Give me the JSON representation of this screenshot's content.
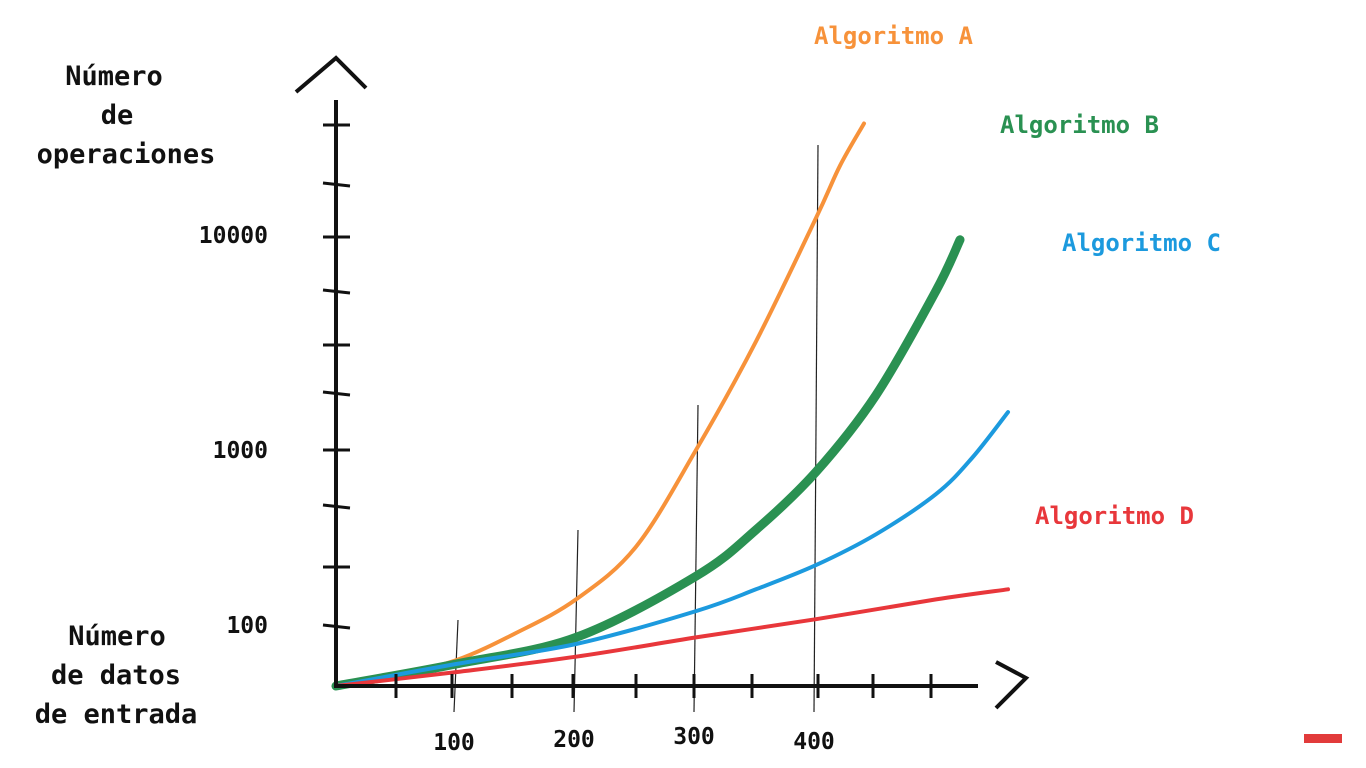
{
  "chart_data": {
    "type": "line",
    "ylabel_lines": [
      "Número",
      "de",
      "operaciones"
    ],
    "xlabel_lines": [
      "Número",
      "de datos",
      "de entrada"
    ],
    "x_ticks": [
      {
        "value": 100,
        "label": "100"
      },
      {
        "value": 200,
        "label": "200"
      },
      {
        "value": 300,
        "label": "300"
      },
      {
        "value": 400,
        "label": "400"
      }
    ],
    "y_ticks": [
      {
        "value": 100,
        "label": "100"
      },
      {
        "value": 1000,
        "label": "1000"
      },
      {
        "value": 10000,
        "label": "10000"
      }
    ],
    "y_scale": "log",
    "xlim": [
      0,
      520
    ],
    "ylim": [
      40,
      40000
    ],
    "series": [
      {
        "name": "Algoritmo A",
        "color": "#f7923a",
        "x": [
          0,
          50,
          100,
          150,
          200,
          250,
          300,
          350,
          400,
          420,
          440
        ],
        "y": [
          45,
          52,
          63,
          90,
          140,
          280,
          1000,
          3200,
          12000,
          21000,
          33000
        ]
      },
      {
        "name": "Algoritmo B",
        "color": "#2a9152",
        "x": [
          0,
          100,
          200,
          300,
          350,
          400,
          450,
          500,
          520
        ],
        "y": [
          45,
          60,
          85,
          190,
          350,
          750,
          1800,
          5500,
          9500
        ]
      },
      {
        "name": "Algoritmo C",
        "color": "#1c9ade",
        "x": [
          0,
          100,
          200,
          300,
          350,
          400,
          450,
          500,
          530,
          560
        ],
        "y": [
          45,
          60,
          78,
          120,
          160,
          220,
          330,
          560,
          900,
          1500
        ]
      },
      {
        "name": "Algoritmo D",
        "color": "#e8373b",
        "x": [
          0,
          100,
          200,
          300,
          400,
          500,
          560
        ],
        "y": [
          45,
          54,
          66,
          85,
          108,
          140,
          160
        ]
      }
    ]
  }
}
